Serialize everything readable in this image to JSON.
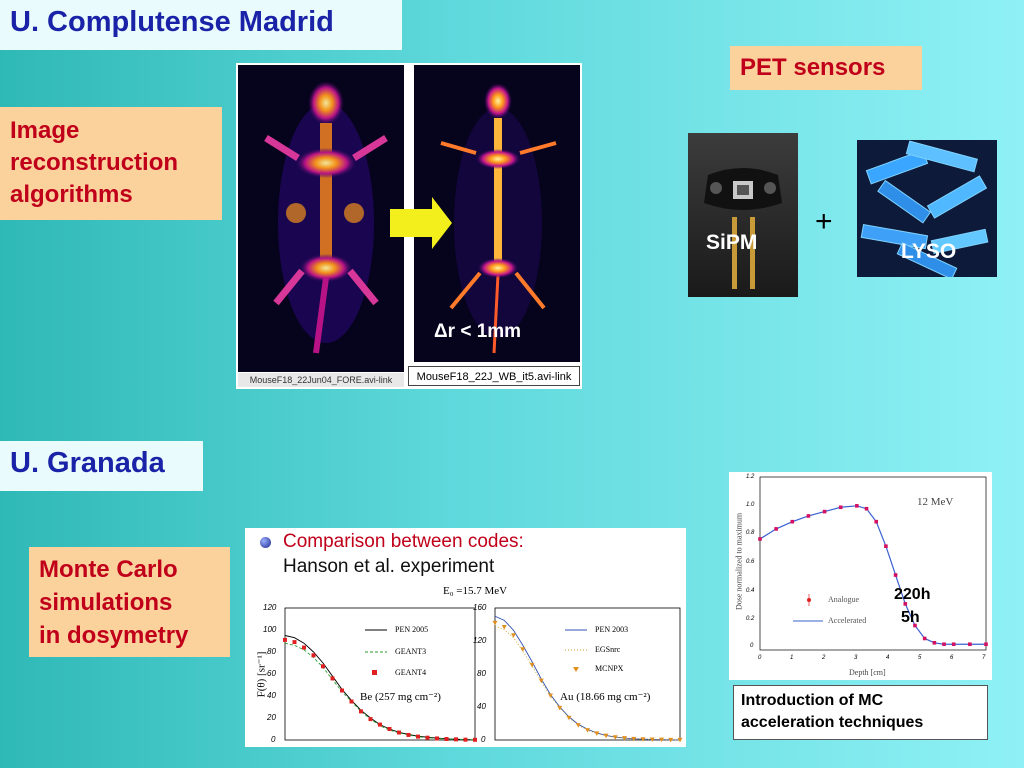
{
  "headers": {
    "madrid": "U. Complutense Madrid",
    "granada": "U. Granada",
    "pet": "PET sensors"
  },
  "topics": {
    "recon": [
      "Image",
      "reconstruction",
      "algorithms"
    ],
    "montecarlo": [
      "Monte Carlo",
      "simulations",
      "in dosymetry"
    ],
    "acceleration": [
      "Introduction of MC",
      "acceleration techniques"
    ]
  },
  "pet_images": {
    "left_caption": "MouseF18_22Jun04_FORE.avi-link",
    "right_caption": "MouseF18_22J_WB_it5.avi-link",
    "resolution": "Δr < 1mm"
  },
  "sensors": {
    "sipm": "SiPM",
    "plus": "+",
    "lyso": "LYSO"
  },
  "comparison": {
    "heading": "Comparison between codes:",
    "subheading": "Hanson et al. experiment",
    "energy": "E₀ =15.7 MeV",
    "ylabel": "F(θ) [sr⁻¹]",
    "left_legend": [
      "PEN 2005",
      "GEANT3",
      "GEANT4"
    ],
    "right_legend": [
      "PEN 2003",
      "EGSnrc",
      "MCNPX"
    ],
    "left_material": "Be (257 mg cm⁻²)",
    "right_material": "Au (18.66 mg cm⁻²)",
    "left_yticks": [
      "120",
      "100",
      "80",
      "60",
      "40",
      "20",
      "0"
    ],
    "right_yticks": [
      "160",
      "120",
      "80",
      "40",
      "0"
    ]
  },
  "dose_chart": {
    "energy": "12 MeV",
    "ylabel": "Dose normalized to maximum",
    "xlabel": "Depth [cm]",
    "yticks": [
      "1.2",
      "1.0",
      "0.8",
      "0.6",
      "0.4",
      "0.2",
      "0"
    ],
    "xticks": [
      "0",
      "1",
      "2",
      "3",
      "4",
      "5",
      "6",
      "7"
    ],
    "legend": [
      "Analogue",
      "Accelerated"
    ],
    "times": [
      "220h",
      "5h"
    ]
  },
  "chart_data": [
    {
      "type": "line",
      "title": "",
      "xlabel": "",
      "ylabel": "F(θ) [sr⁻¹]",
      "ylim": [
        0,
        120
      ],
      "x": [
        0,
        1,
        2,
        3,
        4,
        5,
        6,
        7,
        8,
        9,
        10,
        11,
        12,
        13,
        14,
        15,
        16,
        17,
        18,
        19,
        20
      ],
      "series": [
        {
          "name": "PEN 2005",
          "values": [
            95,
            93,
            88,
            80,
            70,
            58,
            46,
            36,
            27,
            20,
            14,
            10,
            7,
            5,
            3.5,
            2.5,
            1.7,
            1.1,
            0.7,
            0.4,
            0.2
          ]
        },
        {
          "name": "GEANT3",
          "values": [
            88,
            86,
            82,
            75,
            66,
            55,
            44,
            35,
            26,
            19,
            13,
            9,
            6.5,
            4.5,
            3,
            2,
            1.4,
            0.9,
            0.6,
            0.3,
            0.2
          ]
        },
        {
          "name": "GEANT4",
          "values": [
            91,
            89,
            84,
            77,
            67,
            56,
            45,
            35,
            26,
            19,
            14,
            10,
            6.8,
            4.6,
            3.1,
            2.1,
            1.4,
            0.9,
            0.6,
            0.3,
            0.2
          ]
        }
      ]
    },
    {
      "type": "line",
      "title": "",
      "xlabel": "",
      "ylabel": "",
      "ylim": [
        0,
        160
      ],
      "x": [
        0,
        1,
        2,
        3,
        4,
        5,
        6,
        7,
        8,
        9,
        10,
        11,
        12,
        13,
        14,
        15,
        16,
        17,
        18,
        19,
        20
      ],
      "series": [
        {
          "name": "PEN 2003",
          "values": [
            150,
            145,
            133,
            115,
            95,
            74,
            55,
            40,
            28,
            19,
            13,
            8.5,
            5.5,
            3.6,
            2.3,
            1.5,
            1,
            0.6,
            0.4,
            0.2,
            0.1
          ]
        },
        {
          "name": "EGSnrc",
          "values": [
            138,
            134,
            124,
            108,
            90,
            71,
            53,
            39,
            27,
            18,
            12,
            8,
            5.2,
            3.4,
            2.2,
            1.4,
            0.9,
            0.6,
            0.4,
            0.2,
            0.1
          ]
        },
        {
          "name": "MCNPX",
          "values": [
            142,
            137,
            127,
            110,
            91,
            72,
            54,
            39,
            27,
            18,
            12,
            8,
            5.3,
            3.4,
            2.2,
            1.4,
            0.9,
            0.6,
            0.4,
            0.2,
            0.1
          ]
        }
      ]
    },
    {
      "type": "scatter",
      "title": "12 MeV",
      "xlabel": "Depth [cm]",
      "ylabel": "Dose normalized to maximum",
      "xlim": [
        0,
        7
      ],
      "ylim": [
        0,
        1.2
      ],
      "series": [
        {
          "name": "Analogue",
          "x": [
            0,
            0.5,
            1,
            1.5,
            2,
            2.5,
            3,
            3.3,
            3.6,
            3.9,
            4.2,
            4.5,
            4.8,
            5.1,
            5.4,
            5.7,
            6,
            6.5,
            7
          ],
          "values": [
            0.77,
            0.84,
            0.89,
            0.93,
            0.96,
            0.99,
            1.0,
            0.98,
            0.89,
            0.72,
            0.52,
            0.32,
            0.17,
            0.08,
            0.05,
            0.04,
            0.04,
            0.04,
            0.04
          ]
        },
        {
          "name": "Accelerated",
          "x": [
            0,
            0.5,
            1,
            1.5,
            2,
            2.5,
            3,
            3.3,
            3.6,
            3.9,
            4.2,
            4.5,
            4.8,
            5.1,
            5.4,
            5.7,
            6,
            6.5,
            7
          ],
          "values": [
            0.77,
            0.84,
            0.89,
            0.93,
            0.96,
            0.99,
            1.0,
            0.98,
            0.89,
            0.72,
            0.52,
            0.32,
            0.17,
            0.08,
            0.05,
            0.04,
            0.04,
            0.04,
            0.04
          ]
        }
      ]
    }
  ],
  "colors": {
    "title_text": "#1a23a8",
    "peach_bg": "#fcd29c",
    "red_text": "#c0001a",
    "arrow": "#f2ef1c"
  }
}
